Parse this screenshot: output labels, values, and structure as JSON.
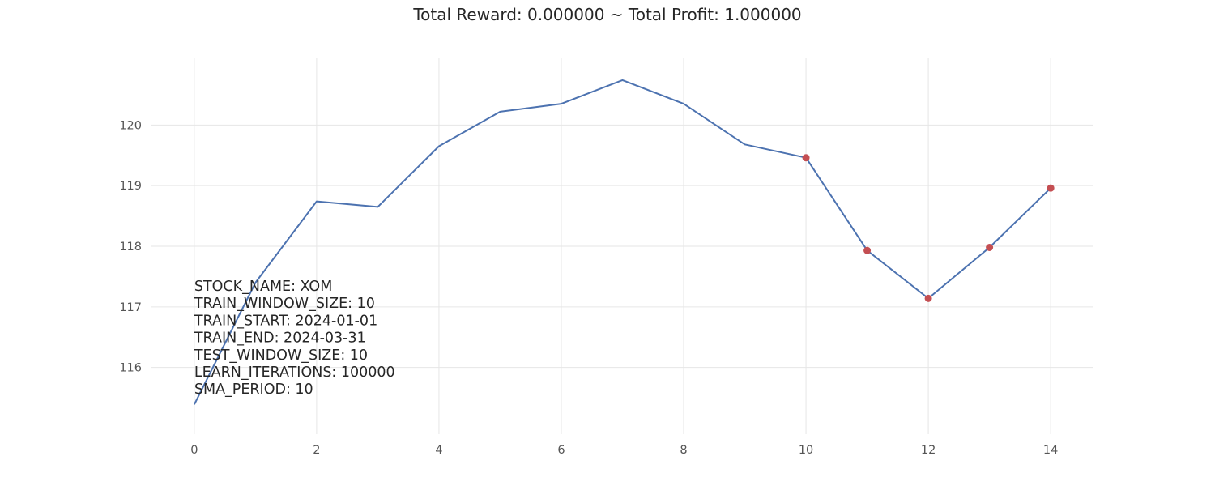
{
  "chart_data": {
    "type": "line",
    "title": "Total Reward: 0.000000 ~ Total Profit: 1.000000",
    "xlabel": "",
    "ylabel": "",
    "xlim": [
      -0.7,
      14.7
    ],
    "ylim": [
      114.9,
      121.1
    ],
    "xticks": [
      0,
      2,
      4,
      6,
      8,
      10,
      12,
      14
    ],
    "yticks": [
      116,
      117,
      118,
      119,
      120
    ],
    "grid": true,
    "series": [
      {
        "color": "#4c72b0",
        "x": [
          0,
          1,
          2,
          3,
          4,
          5,
          6,
          7,
          8,
          9,
          10,
          11,
          12,
          13,
          14
        ],
        "y": [
          115.39,
          117.4,
          118.74,
          118.65,
          119.65,
          120.22,
          120.35,
          120.74,
          120.35,
          119.68,
          119.46,
          117.93,
          117.14,
          117.98,
          118.96
        ]
      }
    ],
    "markers": {
      "color": "#c44e52",
      "x": [
        10,
        11,
        12,
        13,
        14
      ],
      "y": [
        119.46,
        117.93,
        117.14,
        117.98,
        118.96
      ]
    },
    "annotation_lines": [
      "STOCK_NAME: XOM",
      "TRAIN_WINDOW_SIZE: 10",
      "TRAIN_START: 2024-01-01",
      "TRAIN_END: 2024-03-31",
      "TEST_WINDOW_SIZE: 10",
      "LEARN_ITERATIONS: 100000",
      "SMA_PERIOD: 10"
    ]
  }
}
